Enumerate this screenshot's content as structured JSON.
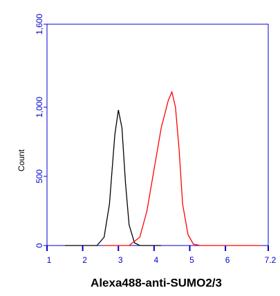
{
  "chart_data": {
    "type": "line",
    "xlabel": "Alexa488-anti-SUMO2/3",
    "ylabel": "Count",
    "xlim": [
      1,
      7.2
    ],
    "ylim": [
      0,
      1600
    ],
    "xticks": [
      1,
      2,
      3,
      4,
      5,
      6,
      7.2
    ],
    "yticks": [
      0,
      500,
      {
        "value": 1000,
        "label": "1,000"
      },
      {
        "value": 1600,
        "label": "1,600"
      }
    ],
    "axis_color": "#0000cc",
    "series": [
      {
        "color": "#000000",
        "x": [
          1.5,
          2.4,
          2.6,
          2.75,
          2.9,
          3.0,
          3.1,
          3.2,
          3.3,
          3.45,
          3.6,
          4.2
        ],
        "values": [
          0,
          0,
          60,
          300,
          800,
          980,
          850,
          450,
          150,
          20,
          0,
          0
        ]
      },
      {
        "color": "#ff0000",
        "x": [
          2.6,
          3.3,
          3.6,
          3.8,
          4.0,
          4.2,
          4.4,
          4.5,
          4.6,
          4.7,
          4.8,
          4.95,
          5.1,
          5.3,
          7.0
        ],
        "values": [
          0,
          0,
          60,
          250,
          550,
          850,
          1050,
          1110,
          1000,
          700,
          300,
          80,
          10,
          0,
          0
        ]
      }
    ]
  }
}
